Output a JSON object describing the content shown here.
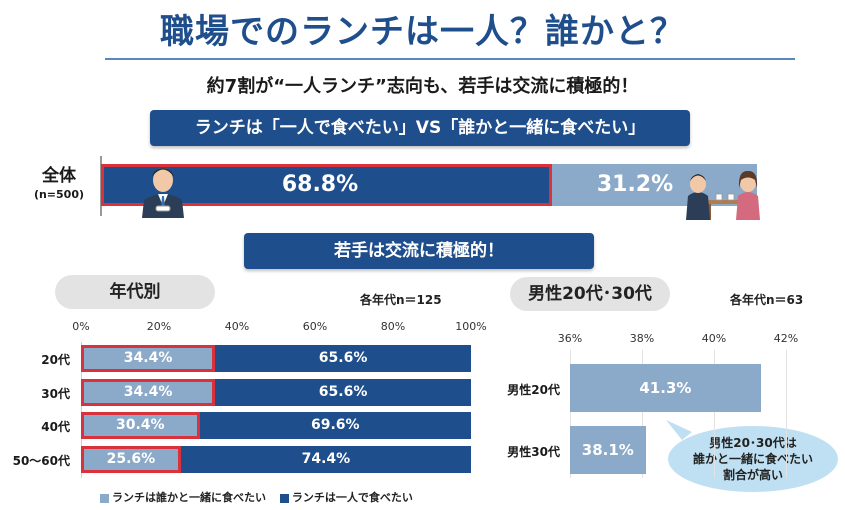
{
  "header": {
    "title": "職場でのランチは一人？誰かと？",
    "subtitle": "約7割が“一人ランチ”志向も、若手は交流に積極的！"
  },
  "banners": {
    "main": "ランチは「一人で食べたい」VS「誰かと一緒に食べたい」",
    "young": "若手は交流に積極的！"
  },
  "overall": {
    "label": "全体",
    "n": "(n=500)",
    "alone_label": "68.8%",
    "together_label": "31.2%"
  },
  "age_section": {
    "pill": "年代別",
    "note": "各年代n＝125"
  },
  "male_section": {
    "pill": "男性20代･30代",
    "note": "各年代n＝63",
    "callout": [
      "男性20･30代は",
      "誰かと一緒に食べたい",
      "割合が高い"
    ]
  },
  "colors": {
    "dark_blue": "#1f4e8c",
    "light_blue": "#8ba9c9",
    "highlight_red": "#d9323c",
    "bubble": "#bfe0f3"
  },
  "chart_data": [
    {
      "type": "bar",
      "orientation": "horizontal",
      "stacked": true,
      "title": "全体",
      "categories": [
        "全体 (n=500)"
      ],
      "series": [
        {
          "name": "ランチは一人で食べたい",
          "values": [
            68.8
          ]
        },
        {
          "name": "ランチは誰かと一緒に食べたい",
          "values": [
            31.2
          ]
        }
      ],
      "unit": "%"
    },
    {
      "type": "bar",
      "orientation": "horizontal",
      "stacked": true,
      "title": "年代別",
      "categories": [
        "20代",
        "30代",
        "40代",
        "50～60代"
      ],
      "series": [
        {
          "name": "ランチは誰かと一緒に食べたい",
          "values": [
            34.4,
            34.4,
            30.4,
            25.6
          ],
          "labels": [
            "34.4%",
            "34.4%",
            "30.4%",
            "25.6%"
          ]
        },
        {
          "name": "ランチは一人で食べたい",
          "values": [
            65.6,
            65.6,
            69.6,
            74.4
          ],
          "labels": [
            "65.6%",
            "65.6%",
            "69.6%",
            "74.4%"
          ]
        }
      ],
      "xticks": [
        "0%",
        "20%",
        "40%",
        "60%",
        "80%",
        "100%"
      ],
      "xlim": [
        0,
        100
      ],
      "legend": [
        "ランチは誰かと一緒に食べたい",
        "ランチは一人で食べたい"
      ],
      "legend_position": "bottom"
    },
    {
      "type": "bar",
      "orientation": "horizontal",
      "title": "男性20代･30代",
      "categories": [
        "男性20代",
        "男性30代"
      ],
      "values": [
        41.3,
        38.1
      ],
      "labels": [
        "41.3%",
        "38.1%"
      ],
      "xticks": [
        "36%",
        "38%",
        "40%",
        "42%"
      ],
      "xlim": [
        36,
        42
      ]
    }
  ]
}
